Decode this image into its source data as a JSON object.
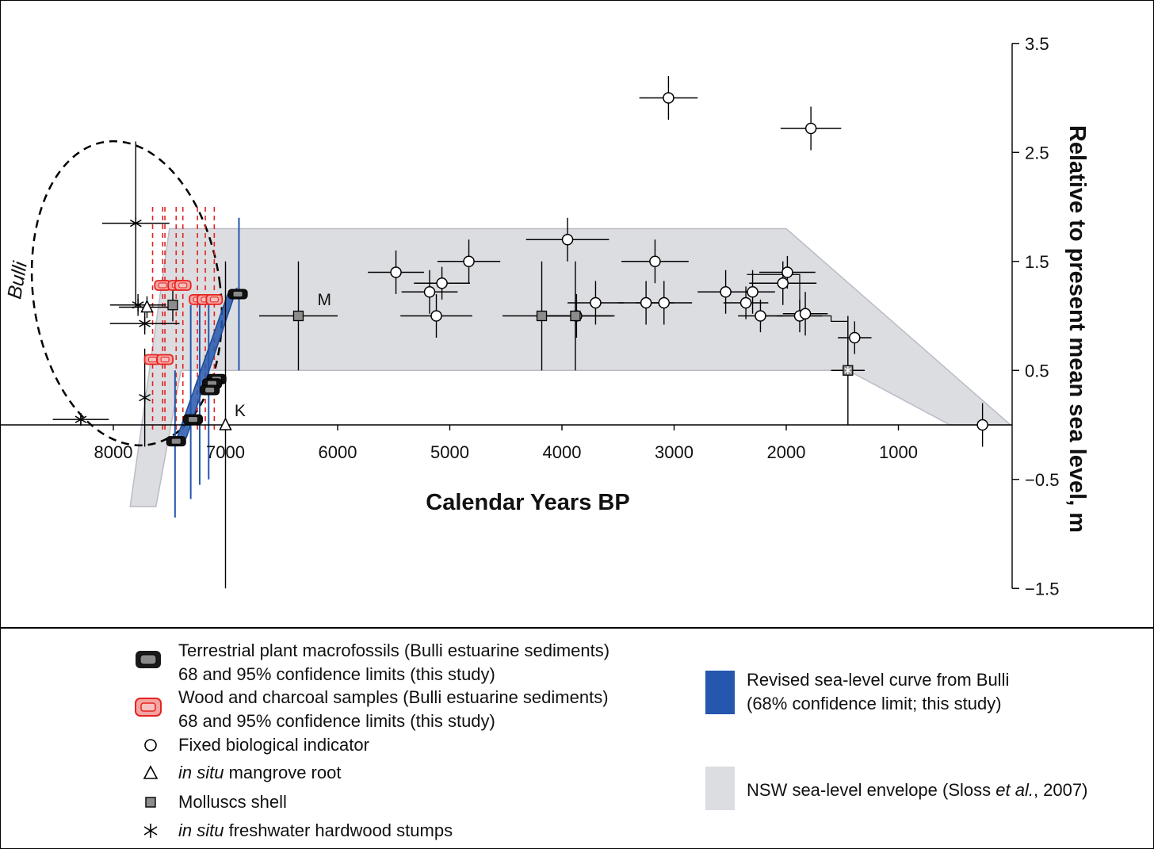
{
  "chart_data": {
    "type": "scatter",
    "xlabel": "Calendar Years BP",
    "ylabel": "Relative to present mean sea level, m",
    "x_ticks": [
      "8000",
      "7000",
      "6000",
      "5000",
      "4000",
      "3000",
      "2000",
      "1000"
    ],
    "y_ticks": [
      "3.5",
      "2.5",
      "1.5",
      "0.5",
      "−0.5",
      "−1.5"
    ],
    "xlim": [
      8800,
      0
    ],
    "ylim": [
      -1.5,
      3.5
    ],
    "annotations": [
      {
        "text": "Bulli",
        "x": 8600,
        "y": 1.2
      },
      {
        "text": "M",
        "x": 6180,
        "y": 1.1
      },
      {
        "text": "K",
        "x": 6920,
        "y": 0.08
      }
    ],
    "envelope": {
      "name": "NSW sea-level envelope",
      "color": "#dcdde1",
      "polygon": [
        [
          7850,
          -0.75
        ],
        [
          7500,
          1.8
        ],
        [
          2000,
          1.8
        ],
        [
          0,
          0
        ],
        [
          540,
          0
        ],
        [
          1450,
          0.5
        ],
        [
          7390,
          0.5
        ],
        [
          7400,
          0.48
        ],
        [
          7620,
          -0.75
        ]
      ]
    },
    "revised_curve": {
      "name": "Revised sea-level curve from Bulli",
      "color": "#2457ad",
      "polygon": [
        [
          7450,
          -0.17
        ],
        [
          7350,
          -0.12
        ],
        [
          6900,
          1.25
        ],
        [
          6980,
          1.2
        ]
      ]
    },
    "fixed_biological": [
      {
        "x": 3050,
        "y": 3.0,
        "xerr": 260,
        "yerr": 0.2
      },
      {
        "x": 1780,
        "y": 2.72,
        "xerr": 270,
        "yerr": 0.2
      },
      {
        "x": 3950,
        "y": 1.7,
        "xerr": 370,
        "yerr": 0.2
      },
      {
        "x": 5480,
        "y": 1.4,
        "xerr": 250,
        "yerr": 0.2
      },
      {
        "x": 4830,
        "y": 1.5,
        "xerr": 280,
        "yerr": 0.2
      },
      {
        "x": 5070,
        "y": 1.3,
        "xerr": 250,
        "yerr": 0.15
      },
      {
        "x": 5180,
        "y": 1.22,
        "xerr": 250,
        "yerr": 0.2
      },
      {
        "x": 5120,
        "y": 1.0,
        "xerr": 320,
        "yerr": 0.2
      },
      {
        "x": 3170,
        "y": 1.5,
        "xerr": 300,
        "yerr": 0.2
      },
      {
        "x": 3700,
        "y": 1.12,
        "xerr": 250,
        "yerr": 0.2
      },
      {
        "x": 3870,
        "y": 1.0,
        "xerr": 320,
        "yerr": 0.2
      },
      {
        "x": 3250,
        "y": 1.12,
        "xerr": 250,
        "yerr": 0.2
      },
      {
        "x": 3090,
        "y": 1.12,
        "xerr": 250,
        "yerr": 0.2
      },
      {
        "x": 2540,
        "y": 1.22,
        "xerr": 250,
        "yerr": 0.2
      },
      {
        "x": 2360,
        "y": 1.12,
        "xerr": 200,
        "yerr": 0.15
      },
      {
        "x": 2300,
        "y": 1.22,
        "xerr": 200,
        "yerr": 0.2
      },
      {
        "x": 2230,
        "y": 1.0,
        "xerr": 200,
        "yerr": 0.15
      },
      {
        "x": 2030,
        "y": 1.3,
        "xerr": 300,
        "yerr": 0.2
      },
      {
        "x": 1990,
        "y": 1.4,
        "xerr": 250,
        "yerr": 0.15
      },
      {
        "x": 1880,
        "y": 1.0,
        "xerr": 200,
        "yerr": 0.15
      },
      {
        "x": 1830,
        "y": 1.02,
        "xerr": 200,
        "yerr": 0.2
      },
      {
        "x": 1390,
        "y": 0.8,
        "xerr": 150,
        "yerr": 0.15
      },
      {
        "x": 250,
        "y": 0.0,
        "xerr": 0,
        "yerr": 0.2
      }
    ],
    "mangrove_root": [
      {
        "x": 7700,
        "y": 1.08,
        "xerr": 250,
        "yerr": 0.1
      },
      {
        "x": 7000,
        "y": 0.0,
        "xerr": 0,
        "yerr": 1.5
      }
    ],
    "mollusc_shell": [
      {
        "x": 7470,
        "y": 1.1,
        "xerr": 0,
        "yerr": 0.15
      },
      {
        "x": 6350,
        "y": 1.0,
        "xerr": 350,
        "yerr": 0.5
      },
      {
        "x": 4180,
        "y": 1.0,
        "xerr": 350,
        "yerr": 0.5
      },
      {
        "x": 3880,
        "y": 1.0,
        "xerr": 350,
        "yerr": 0.5
      },
      {
        "x": 1450,
        "y": 0.5,
        "xerr": 150,
        "yerr": 0.5
      }
    ],
    "hardwood_stumps": [
      {
        "x": 7800,
        "y": 1.85,
        "xerr": 300,
        "yerr": 0.75
      },
      {
        "x": 7780,
        "y": 1.1,
        "xerr": 250,
        "yerr": 0.1
      },
      {
        "x": 7720,
        "y": 0.93,
        "xerr": 310,
        "yerr": 0.1
      },
      {
        "x": 8290,
        "y": 0.05,
        "xerr": 250,
        "yerr": 0.05
      },
      {
        "x": 7720,
        "y": 0.25,
        "xerr": 0,
        "yerr": 0.45
      }
    ],
    "plant_macrofossils": [
      {
        "x": 6890,
        "y": 1.2
      },
      {
        "x": 7080,
        "y": 0.42
      },
      {
        "x": 7120,
        "y": 0.38
      },
      {
        "x": 7140,
        "y": 0.32
      },
      {
        "x": 7290,
        "y": 0.05
      },
      {
        "x": 7440,
        "y": -0.15
      }
    ],
    "wood_charcoal": [
      {
        "x": 7650,
        "y": 0.6
      },
      {
        "x": 7540,
        "y": 0.6
      },
      {
        "x": 7560,
        "y": 1.28
      },
      {
        "x": 7440,
        "y": 1.28
      },
      {
        "x": 7380,
        "y": 1.28
      },
      {
        "x": 7250,
        "y": 1.15
      },
      {
        "x": 7180,
        "y": 1.15
      },
      {
        "x": 7100,
        "y": 1.15
      }
    ]
  },
  "legend": {
    "plant_line1": "Terrestrial plant macrofossils (Bulli estuarine sediments)",
    "plant_line2": "68 and 95% confidence limits (this study)",
    "wood_line1": "Wood and charcoal samples (Bulli estuarine sediments)",
    "wood_line2": "68 and 95% confidence limits (this study)",
    "fixed": "Fixed biological indicator",
    "mangrove_italic": "in situ",
    "mangrove_rest": " mangrove root",
    "mollusc": "Molluscs shell",
    "stumps_italic": "in situ",
    "stumps_rest": " freshwater hardwood stumps",
    "curve_line1": "Revised sea-level curve from Bulli",
    "curve_line2": "(68% confidence limit; this study)",
    "envelope_a": "NSW sea-level envelope (Sloss ",
    "envelope_italic": "et al.",
    "envelope_b": ", 2007)"
  }
}
